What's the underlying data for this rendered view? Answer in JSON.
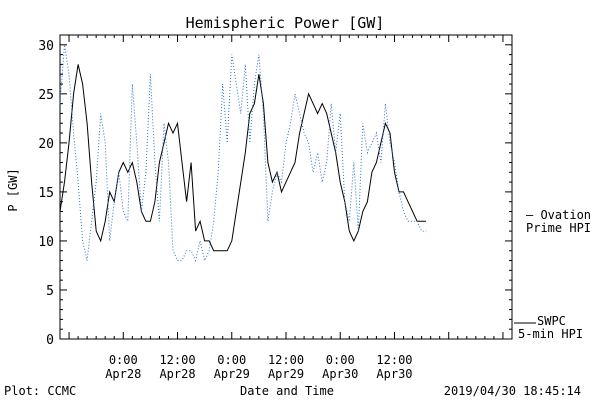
{
  "colors": {
    "background": "#ffffff",
    "axis": "#000000",
    "swpc_series": "#000000",
    "ovation_series": "#2a6fd6",
    "ovation_label": "#2a6fd6"
  },
  "footer": {
    "left": "Plot: CCMC",
    "center": "Date and Time",
    "right": "2019/04/30 18:45:14"
  },
  "chart_data": {
    "type": "line",
    "title": "Hemispheric Power [GW]",
    "ylabel": "P [GW]",
    "xlabel": "Date and Time",
    "x_unit": "hours since 2019-04-28 00:00",
    "xlim": [
      -7,
      43
    ],
    "ylim": [
      0,
      31
    ],
    "yticks": [
      0,
      5,
      10,
      15,
      20,
      25,
      30
    ],
    "xticks": [
      {
        "x": 0,
        "line1": "0:00",
        "line2": "Apr28"
      },
      {
        "x": 6,
        "line1": "12:00",
        "line2": "Apr28"
      },
      {
        "x": 12,
        "line1": "0:00",
        "line2": "Apr29"
      },
      {
        "x": 18,
        "line1": "12:00",
        "line2": "Apr29"
      },
      {
        "x": 24,
        "line1": "0:00",
        "line2": "Apr30"
      },
      {
        "x": 30,
        "line1": "12:00",
        "line2": "Apr30"
      }
    ],
    "grid": false,
    "legend_position": "right",
    "series": [
      {
        "name": "SWPC 5-min HPI",
        "label_lines": [
          "SWPC",
          "5-min HPI"
        ],
        "style": "solid",
        "x": [
          -7,
          -6.5,
          -6,
          -5.5,
          -5,
          -4.5,
          -4,
          -3.5,
          -3,
          -2.5,
          -2,
          -1.5,
          -1,
          -0.5,
          0,
          0.5,
          1,
          1.5,
          2,
          2.5,
          3,
          3.5,
          4,
          4.5,
          5,
          5.5,
          6,
          6.5,
          7,
          7.5,
          8,
          8.5,
          9,
          9.5,
          10,
          10.5,
          11,
          11.5,
          12,
          12.5,
          13,
          13.5,
          14,
          14.5,
          15,
          15.5,
          16,
          16.5,
          17,
          17.5,
          18,
          18.5,
          19,
          19.5,
          20,
          20.5,
          21,
          21.5,
          22,
          22.5,
          23,
          23.5,
          24,
          24.5,
          25,
          25.5,
          26,
          26.5,
          27,
          27.5,
          28,
          28.5,
          29,
          29.5,
          30,
          30.5,
          31,
          31.5,
          32,
          32.5,
          33,
          33.5
        ],
        "y": [
          13,
          16,
          20,
          25,
          28,
          26,
          22,
          16,
          11,
          10,
          12,
          15,
          14,
          17,
          18,
          17,
          18,
          16,
          13,
          12,
          12,
          14,
          18,
          20,
          22,
          21,
          22,
          18,
          14,
          18,
          11,
          12,
          10,
          10,
          9,
          9,
          9,
          9,
          10,
          13,
          16,
          19,
          23,
          24,
          27,
          24,
          18,
          16,
          17,
          15,
          16,
          17,
          18,
          21,
          23,
          25,
          24,
          23,
          24,
          23,
          21,
          19,
          16,
          14,
          11,
          10,
          11,
          13,
          14,
          17,
          18,
          20,
          22,
          21,
          17,
          15,
          15,
          14,
          13,
          12,
          12,
          12
        ]
      },
      {
        "name": "Ovation Prime HPI",
        "label_lines": [
          "— Ovation",
          "Prime HPI"
        ],
        "style": "dotted",
        "x": [
          -7,
          -6.5,
          -6,
          -5.5,
          -5,
          -4.5,
          -4,
          -3.5,
          -3,
          -2.5,
          -2,
          -1.5,
          -1,
          -0.5,
          0,
          0.5,
          1,
          1.5,
          2,
          2.5,
          3,
          3.5,
          4,
          4.5,
          5,
          5.5,
          6,
          6.5,
          7,
          7.5,
          8,
          8.5,
          9,
          9.5,
          10,
          10.5,
          11,
          11.5,
          12,
          12.5,
          13,
          13.5,
          14,
          14.5,
          15,
          15.5,
          16,
          16.5,
          17,
          17.5,
          18,
          18.5,
          19,
          19.5,
          20,
          20.5,
          21,
          21.5,
          22,
          22.5,
          23,
          23.5,
          24,
          24.5,
          25,
          25.5,
          26,
          26.5,
          27,
          27.5,
          28,
          28.5,
          29,
          29.5,
          30,
          30.5,
          31,
          31.5,
          32,
          32.5,
          33,
          33.5
        ],
        "y": [
          24,
          30,
          27,
          21,
          16,
          10,
          8,
          12,
          16,
          23,
          20,
          10,
          14,
          17,
          13,
          12,
          26,
          20,
          13,
          17,
          27,
          18,
          12,
          22,
          18,
          9,
          8,
          8,
          9,
          9,
          8,
          10,
          8,
          9,
          12,
          17,
          26,
          20,
          29,
          26,
          23,
          28,
          20,
          26,
          29,
          23,
          12,
          15,
          17,
          16,
          20,
          22,
          25,
          23,
          21,
          20,
          17,
          19,
          16,
          18,
          24,
          19,
          23,
          14,
          12,
          18,
          11,
          22,
          19,
          20,
          21,
          18,
          24,
          20,
          18,
          15,
          13,
          12,
          12,
          12,
          11,
          11
        ]
      }
    ]
  }
}
